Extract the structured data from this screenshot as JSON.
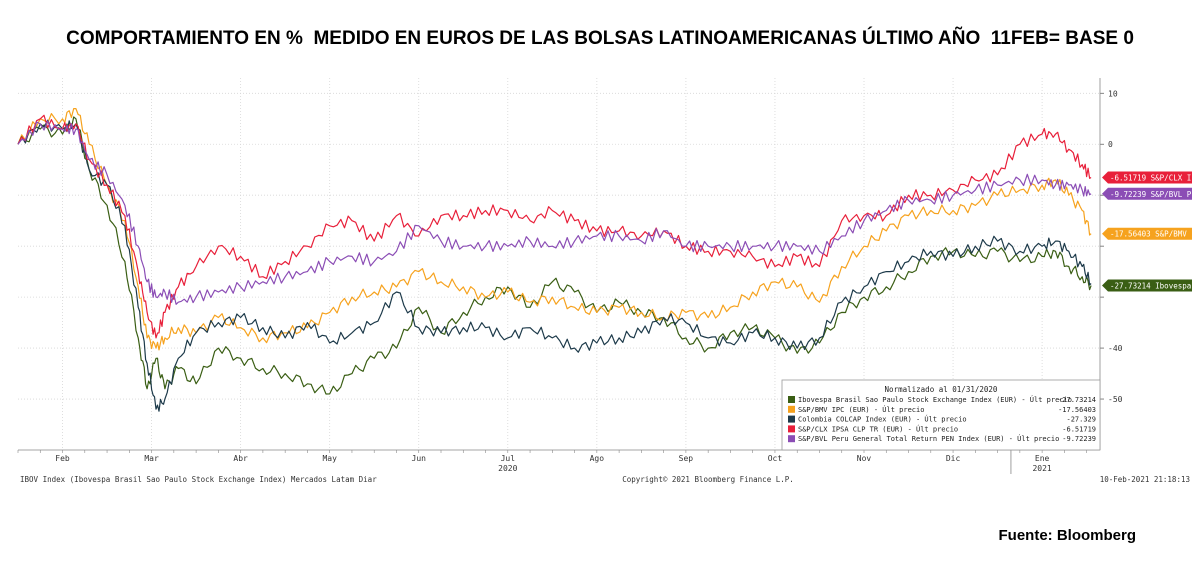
{
  "title": "COMPORTAMIENTO EN %  MEDIDO EN EUROS DE LAS BOLSAS LATINOAMERICANAS ÚLTIMO AÑO  11FEB= BASE 0",
  "source": "Fuente: Bloomberg",
  "chart_data": {
    "type": "line",
    "ylim": [
      -60,
      13
    ],
    "y_ticks": [
      10,
      0,
      -10,
      -20,
      -30,
      -40,
      -50
    ],
    "y_tick_labels": [
      "10",
      "0",
      "",
      "",
      "",
      "-40",
      "-50"
    ],
    "x_range": [
      0,
      24.3
    ],
    "x_ticks": [
      {
        "label": "Feb",
        "x": 1
      },
      {
        "label": "Mar",
        "x": 3
      },
      {
        "label": "Abr",
        "x": 5
      },
      {
        "label": "May",
        "x": 7
      },
      {
        "label": "Jun",
        "x": 9
      },
      {
        "label": "Jul",
        "x": 11
      },
      {
        "label": "Ago",
        "x": 13
      },
      {
        "label": "Sep",
        "x": 15
      },
      {
        "label": "Oct",
        "x": 17
      },
      {
        "label": "Nov",
        "x": 19
      },
      {
        "label": "Dic",
        "x": 21
      },
      {
        "label": "Ene",
        "x": 23
      }
    ],
    "years": [
      {
        "label": "2020",
        "x": 11
      },
      {
        "label": "2021",
        "x": 23
      }
    ],
    "footer_left": "IBOV Index (Ibovespa Brasil Sao Paulo Stock Exchange Index) Mercados Latam  Diar",
    "footer_center": "Copyright© 2021 Bloomberg Finance L.P.",
    "footer_right": "10-Feb-2021 21:18:13",
    "legend": {
      "title": "Normalizado al 01/31/2020",
      "position": "bottom-right",
      "entries": [
        {
          "label": "Ibovespa Brasil Sao Paulo Stock Exchange Index (EUR) - Últ precio",
          "value": "-27.73214"
        },
        {
          "label": "S&P/BMV IPC (EUR) - Últ precio",
          "value": "-17.56403"
        },
        {
          "label": "Colombia COLCAP Index (EUR) - Últ precio",
          "value": "-27.329"
        },
        {
          "label": "S&P/CLX IPSA CLP TR (EUR) - Últ precio",
          "value": "-6.51719"
        },
        {
          "label": "S&P/BVL Peru General Total Return PEN Index (EUR) - Últ precio",
          "value": "-9.72239"
        }
      ]
    },
    "end_tags": [
      {
        "text": "-6.51719  S&P/CLX I",
        "value": -6.52,
        "color": "#e8203a"
      },
      {
        "text": "-9.72239  S&P/BVL P",
        "value": -9.72,
        "color": "#8b4db5"
      },
      {
        "text": "-17.56403 S&P/BMV I",
        "value": -17.56,
        "color": "#f6a21e"
      },
      {
        "text": "-27.73214 Ibovespa",
        "value": -27.73,
        "color": "#3a5e14"
      }
    ],
    "series": [
      {
        "name": "Ibovespa Brasil Sao Paulo Stock Exchange Index (EUR)",
        "color": "#3a5e14",
        "x": [
          0,
          0.5,
          1,
          1.3,
          1.6,
          2.0,
          2.4,
          2.7,
          2.9,
          3.1,
          3.3,
          3.6,
          4.0,
          4.5,
          5.0,
          5.5,
          6.0,
          6.5,
          7.0,
          7.5,
          8.0,
          8.5,
          9.0,
          9.5,
          10.0,
          10.5,
          11.0,
          11.5,
          12.0,
          12.5,
          13.0,
          13.5,
          14.0,
          14.5,
          15.0,
          15.5,
          16.0,
          16.5,
          17.0,
          17.5,
          18.0,
          18.5,
          19.0,
          19.5,
          20.0,
          20.5,
          21.0,
          21.5,
          22.0,
          22.5,
          23.0,
          23.3,
          23.6,
          23.9,
          24.1
        ],
        "y": [
          0,
          3,
          2,
          5,
          -5,
          -12,
          -23,
          -38,
          -48,
          -42,
          -48,
          -44,
          -47,
          -40,
          -42,
          -44,
          -45,
          -47,
          -49,
          -45,
          -42,
          -40,
          -32,
          -37,
          -33,
          -30,
          -28,
          -32,
          -27,
          -29,
          -33,
          -31,
          -33,
          -34,
          -38,
          -40,
          -37,
          -36,
          -38,
          -41,
          -39,
          -33,
          -30,
          -28,
          -25,
          -22,
          -21,
          -22,
          -21,
          -23,
          -22,
          -21,
          -24,
          -26,
          -27.73
        ]
      },
      {
        "name": "S&P/BMV IPC (EUR)",
        "color": "#f6a21e",
        "x": [
          0,
          0.5,
          1,
          1.3,
          1.6,
          2.0,
          2.4,
          2.7,
          2.9,
          3.1,
          3.3,
          3.6,
          4.0,
          4.5,
          5.0,
          5.5,
          6.0,
          6.5,
          7.0,
          7.5,
          8.0,
          8.5,
          9.0,
          9.5,
          10.0,
          10.5,
          11.0,
          11.5,
          12.0,
          12.5,
          13.0,
          13.5,
          14.0,
          14.5,
          15.0,
          15.5,
          16.0,
          16.5,
          17.0,
          17.5,
          18.0,
          18.5,
          19.0,
          19.5,
          20.0,
          20.5,
          21.0,
          21.5,
          22.0,
          22.5,
          23.0,
          23.3,
          23.6,
          23.9,
          24.1
        ],
        "y": [
          0,
          5,
          5,
          7,
          0,
          -8,
          -15,
          -28,
          -38,
          -40,
          -38,
          -36,
          -37,
          -34,
          -36,
          -38,
          -37,
          -36,
          -33,
          -30,
          -29,
          -28,
          -25,
          -27,
          -28,
          -30,
          -29,
          -31,
          -30,
          -32,
          -33,
          -32,
          -33,
          -34,
          -33,
          -34,
          -32,
          -29,
          -27,
          -28,
          -31,
          -24,
          -20,
          -17,
          -14,
          -13,
          -13,
          -12,
          -10,
          -9,
          -8,
          -7,
          -10,
          -13,
          -17.56
        ]
      },
      {
        "name": "Colombia COLCAP Index (EUR)",
        "color": "#1d3a4a",
        "x": [
          0,
          0.5,
          1,
          1.3,
          1.6,
          2.0,
          2.4,
          2.7,
          2.9,
          3.1,
          3.3,
          3.6,
          4.0,
          4.5,
          5.0,
          5.5,
          6.0,
          6.5,
          7.0,
          7.5,
          8.0,
          8.5,
          9.0,
          9.5,
          10.0,
          10.5,
          11.0,
          11.5,
          12.0,
          12.5,
          13.0,
          13.5,
          14.0,
          14.5,
          15.0,
          15.5,
          16.0,
          16.5,
          17.0,
          17.5,
          18.0,
          18.5,
          19.0,
          19.5,
          20.0,
          20.5,
          21.0,
          21.5,
          22.0,
          22.5,
          23.0,
          23.3,
          23.6,
          23.9,
          24.1
        ],
        "y": [
          0,
          4,
          3,
          4,
          -5,
          -8,
          -16,
          -32,
          -43,
          -52,
          -50,
          -42,
          -37,
          -35,
          -34,
          -36,
          -38,
          -35,
          -39,
          -37,
          -35,
          -29,
          -36,
          -37,
          -36,
          -36,
          -38,
          -36,
          -38,
          -40,
          -39,
          -38,
          -37,
          -34,
          -35,
          -38,
          -39,
          -37,
          -38,
          -40,
          -38,
          -31,
          -28,
          -25,
          -23,
          -21,
          -22,
          -20,
          -19,
          -21,
          -20,
          -19,
          -21,
          -24,
          -27.33
        ]
      },
      {
        "name": "S&P/CLX IPSA CLP TR (EUR)",
        "color": "#e8203a",
        "x": [
          0,
          0.5,
          1,
          1.3,
          1.6,
          2.0,
          2.4,
          2.7,
          2.9,
          3.1,
          3.3,
          3.6,
          4.0,
          4.5,
          5.0,
          5.5,
          6.0,
          6.5,
          7.0,
          7.5,
          8.0,
          8.5,
          9.0,
          9.5,
          10.0,
          10.5,
          11.0,
          11.5,
          12.0,
          12.5,
          13.0,
          13.5,
          14.0,
          14.5,
          15.0,
          15.5,
          16.0,
          16.5,
          17.0,
          17.5,
          18.0,
          18.5,
          19.0,
          19.5,
          20.0,
          20.5,
          21.0,
          21.5,
          22.0,
          22.5,
          23.0,
          23.3,
          23.6,
          23.9,
          24.1
        ],
        "y": [
          0,
          5,
          3,
          4,
          -3,
          -8,
          -14,
          -25,
          -33,
          -38,
          -33,
          -28,
          -24,
          -20,
          -22,
          -26,
          -23,
          -20,
          -16,
          -15,
          -19,
          -14,
          -18,
          -14,
          -14,
          -13,
          -13,
          -15,
          -13,
          -15,
          -17,
          -17,
          -18,
          -17,
          -20,
          -21,
          -21,
          -22,
          -24,
          -22,
          -24,
          -15,
          -14,
          -14,
          -10,
          -10,
          -9,
          -7,
          -6,
          0,
          2,
          2,
          -1,
          -4,
          -6.52
        ]
      },
      {
        "name": "S&P/BVL Peru General Total Return PEN Index (EUR)",
        "color": "#8b4db5",
        "x": [
          0,
          0.5,
          1,
          1.3,
          1.6,
          2.0,
          2.4,
          2.7,
          2.9,
          3.1,
          3.3,
          3.6,
          4.0,
          4.5,
          5.0,
          5.5,
          6.0,
          6.5,
          7.0,
          7.5,
          8.0,
          8.5,
          9.0,
          9.5,
          10.0,
          10.5,
          11.0,
          11.5,
          12.0,
          12.5,
          13.0,
          13.5,
          14.0,
          14.5,
          15.0,
          15.5,
          16.0,
          16.5,
          17.0,
          17.5,
          18.0,
          18.5,
          19.0,
          19.5,
          20.0,
          20.5,
          21.0,
          21.5,
          22.0,
          22.5,
          23.0,
          23.3,
          23.6,
          23.9,
          24.1
        ],
        "y": [
          0,
          4,
          3,
          3,
          -3,
          -6,
          -12,
          -20,
          -27,
          -30,
          -29,
          -31,
          -30,
          -29,
          -28,
          -27,
          -26,
          -25,
          -23,
          -22,
          -23,
          -21,
          -16,
          -19,
          -20,
          -20,
          -20,
          -19,
          -20,
          -19,
          -18,
          -18,
          -19,
          -17,
          -20,
          -20,
          -20,
          -20,
          -20,
          -20,
          -21,
          -18,
          -15,
          -13,
          -11,
          -11,
          -10,
          -9,
          -8,
          -7,
          -7,
          -8,
          -8,
          -9,
          -9.72
        ]
      }
    ]
  }
}
